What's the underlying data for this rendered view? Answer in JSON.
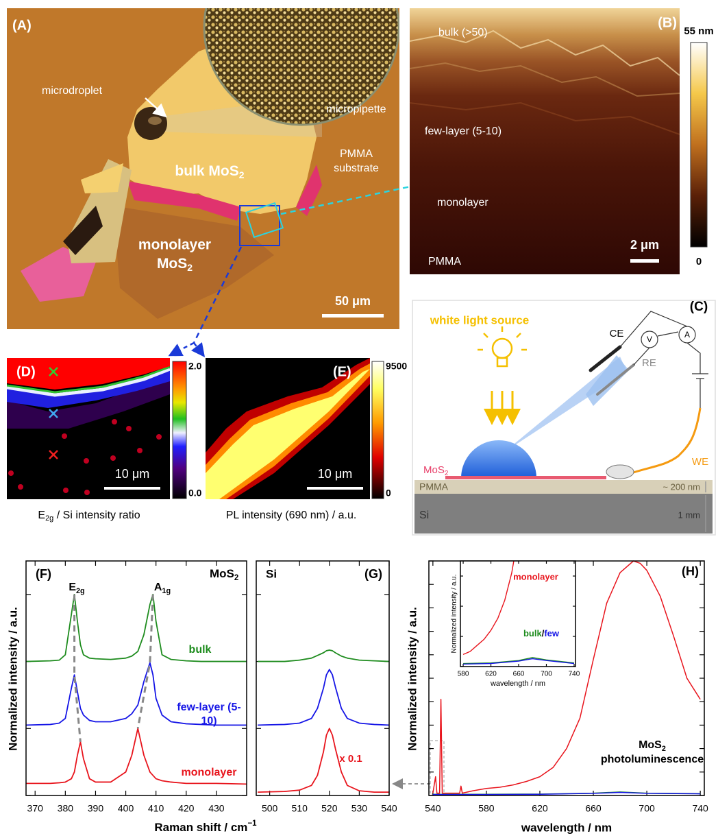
{
  "panels": {
    "A": {
      "label": "(A)",
      "microdroplet": "microdroplet",
      "micropipette": "micropipette",
      "pmma": [
        "PMMA",
        "substrate"
      ],
      "bulk": [
        "bulk MoS",
        "2"
      ],
      "monolayer": [
        "monolayer",
        "MoS",
        "2"
      ],
      "scale_bar": "50 μm"
    },
    "B": {
      "label": "(B)",
      "regions": [
        "bulk (>50)",
        "few-layer (5-10)",
        "monolayer",
        "PMMA"
      ],
      "scale_bar": "2 μm",
      "colorbar": [
        "55 nm",
        "0"
      ]
    },
    "C": {
      "label": "(C)",
      "light": "white light source",
      "CE": "CE",
      "RE": "RE",
      "V": "V",
      "A": "A",
      "WE": "WE",
      "mos2": [
        "MoS",
        "2"
      ],
      "pmma": "PMMA",
      "pmma_thickness": "~ 200 nm",
      "si": "Si",
      "si_thickness": "1 mm"
    },
    "D": {
      "label": "(D)",
      "scale_bar": "10 μm",
      "colorbar": [
        "2.0",
        "0.0"
      ],
      "caption": [
        "E",
        "2g",
        " / Si intensity ratio"
      ]
    },
    "E": {
      "label": "(E)",
      "scale_bar": "10 μm",
      "colorbar": [
        "9500",
        "0"
      ],
      "caption": "PL intensity (690 nm) / a.u."
    }
  },
  "chart_data": [
    {
      "type": "line",
      "label": "(F)",
      "title": [
        "MoS",
        "2"
      ],
      "peaks": [
        [
          "E",
          "2g"
        ],
        [
          "A",
          "1g"
        ]
      ],
      "xlabel": [
        "Raman shift / cm",
        "−1"
      ],
      "ylabel": "Normalized intensity / a.u.",
      "x": [
        367,
        375,
        378,
        380,
        382,
        383,
        384,
        385,
        386,
        388,
        390,
        395,
        400,
        402,
        404,
        406,
        408,
        409,
        410,
        412,
        415,
        420,
        425,
        430,
        440
      ],
      "xlim": [
        367,
        440
      ],
      "xticks": [
        370,
        380,
        390,
        400,
        410,
        420,
        430
      ],
      "ylim": [
        0,
        3.5
      ],
      "yticks": [
        0,
        1,
        2,
        3
      ],
      "series": [
        {
          "name": "bulk",
          "color": "#1e8c1e",
          "values": [
            2.0,
            2.01,
            2.02,
            2.1,
            2.7,
            3.0,
            2.6,
            2.25,
            2.1,
            2.05,
            2.04,
            2.03,
            2.05,
            2.08,
            2.15,
            2.4,
            2.85,
            3.0,
            2.6,
            2.1,
            2.03,
            2.01,
            2.0,
            2.0,
            2.0
          ]
        },
        {
          "name": "few-layer (5-10)",
          "color": "#1515e6",
          "values": [
            1.05,
            1.06,
            1.08,
            1.15,
            1.6,
            1.8,
            1.55,
            1.3,
            1.2,
            1.12,
            1.1,
            1.1,
            1.15,
            1.22,
            1.35,
            1.7,
            1.98,
            1.8,
            1.45,
            1.2,
            1.1,
            1.07,
            1.06,
            1.05,
            1.05
          ]
        },
        {
          "name": "monolayer",
          "color": "#e8141c",
          "values": [
            0.18,
            0.18,
            0.19,
            0.2,
            0.25,
            0.35,
            0.6,
            0.8,
            0.55,
            0.25,
            0.2,
            0.2,
            0.35,
            0.6,
            1.0,
            0.6,
            0.35,
            0.3,
            0.25,
            0.22,
            0.2,
            0.18,
            0.18,
            0.18,
            0.17
          ]
        }
      ]
    },
    {
      "type": "line",
      "label": "(G)",
      "title": "Si",
      "annotation": "x 0.1",
      "x": [
        496,
        505,
        510,
        514,
        516,
        518,
        519,
        520,
        521,
        522,
        524,
        526,
        530,
        535,
        540
      ],
      "xlim": [
        495.5,
        540
      ],
      "xticks": [
        500,
        510,
        520,
        530,
        540
      ],
      "ylim": [
        0,
        3.5
      ],
      "yticks": [
        0,
        1,
        2,
        3
      ],
      "series": [
        {
          "color": "#1e8c1e",
          "values": [
            2.0,
            2.0,
            2.02,
            2.05,
            2.09,
            2.13,
            2.16,
            2.17,
            2.16,
            2.13,
            2.08,
            2.05,
            2.02,
            2.01,
            2.0
          ]
        },
        {
          "color": "#1515e6",
          "values": [
            1.05,
            1.06,
            1.08,
            1.15,
            1.3,
            1.6,
            1.8,
            1.88,
            1.8,
            1.62,
            1.3,
            1.15,
            1.08,
            1.06,
            1.05
          ]
        },
        {
          "color": "#e8141c",
          "values": [
            0.05,
            0.06,
            0.08,
            0.15,
            0.3,
            0.65,
            0.9,
            1.0,
            0.9,
            0.7,
            0.35,
            0.15,
            0.07,
            0.05,
            0.05
          ]
        }
      ]
    },
    {
      "type": "line",
      "label": "(H)",
      "annotation": [
        "MoS",
        "2",
        "photoluminescence"
      ],
      "xlabel": "wavelength / nm",
      "ylabel": "Normalized intensity / a.u.",
      "xlim": [
        537,
        743
      ],
      "xticks": [
        540,
        580,
        620,
        660,
        700,
        740
      ],
      "ylim": [
        0,
        1
      ],
      "yticks": [
        0,
        0.1,
        0.2,
        0.3,
        0.4,
        0.5,
        0.6,
        0.7,
        0.8,
        0.9,
        1
      ],
      "series": [
        {
          "color": "#e8141c",
          "x": [
            540,
            542,
            543,
            545,
            546,
            547,
            550,
            560,
            561,
            562,
            570,
            580,
            590,
            600,
            610,
            620,
            630,
            640,
            650,
            660,
            670,
            680,
            690,
            695,
            700,
            710,
            720,
            730,
            740
          ],
          "values": [
            0.01,
            0.08,
            0.01,
            0.01,
            0.41,
            0.01,
            0.01,
            0.01,
            0.04,
            0.01,
            0.02,
            0.03,
            0.035,
            0.045,
            0.06,
            0.08,
            0.12,
            0.2,
            0.33,
            0.58,
            0.82,
            0.95,
            1.0,
            0.99,
            0.96,
            0.85,
            0.68,
            0.5,
            0.41
          ]
        },
        {
          "color": "#1e8c1e",
          "x": [
            540,
            580,
            620,
            660,
            680,
            700,
            740
          ],
          "values": [
            0.005,
            0.005,
            0.006,
            0.01,
            0.015,
            0.01,
            0.008
          ]
        },
        {
          "color": "#1515e6",
          "x": [
            540,
            580,
            620,
            660,
            680,
            700,
            740
          ],
          "values": [
            0.004,
            0.004,
            0.005,
            0.009,
            0.013,
            0.009,
            0.007
          ]
        }
      ]
    },
    {
      "type": "line",
      "xlabel": "wavelength / nm",
      "ylabel": "Normalized intensity / a.u.",
      "xlim": [
        576,
        742
      ],
      "xticks": [
        580,
        620,
        660,
        700,
        740
      ],
      "ylim": [
        0,
        0.35
      ],
      "yticks": [
        0,
        0.1,
        0.2,
        0.3
      ],
      "separator": "/",
      "series": [
        {
          "name": "monolayer",
          "color": "#e8141c",
          "x": [
            580,
            590,
            600,
            610,
            620,
            630,
            640,
            650,
            653
          ],
          "values": [
            0.04,
            0.05,
            0.07,
            0.09,
            0.12,
            0.16,
            0.22,
            0.31,
            0.35
          ]
        },
        {
          "name": "bulk",
          "color": "#1e8c1e",
          "x": [
            580,
            620,
            660,
            680,
            700,
            740
          ],
          "values": [
            0.01,
            0.012,
            0.02,
            0.03,
            0.022,
            0.012
          ]
        },
        {
          "name": "few",
          "color": "#1515e6",
          "x": [
            580,
            620,
            660,
            680,
            700,
            740
          ],
          "values": [
            0.008,
            0.01,
            0.018,
            0.026,
            0.02,
            0.01
          ]
        }
      ]
    }
  ]
}
